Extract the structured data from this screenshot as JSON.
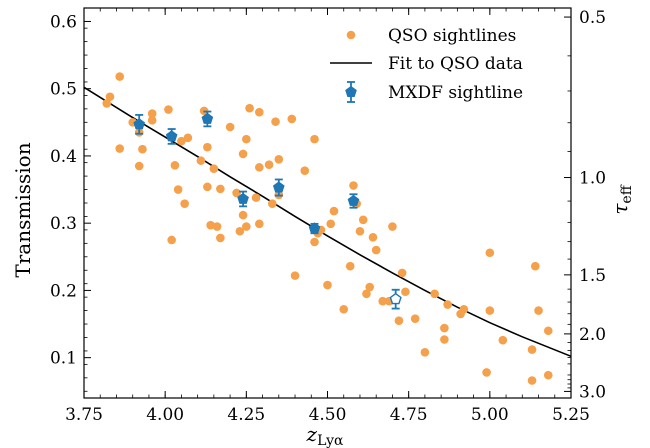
{
  "chart_data": {
    "type": "scatter",
    "xlabel": "z",
    "xlabel_sub": "Lyα",
    "ylabel": "Transmission",
    "y2label": "τ",
    "y2label_sub": "eff",
    "xlim": [
      3.75,
      5.25
    ],
    "ylim": [
      0.04,
      0.62
    ],
    "xticks": [
      3.75,
      4.0,
      4.25,
      4.5,
      4.75,
      5.0,
      5.25
    ],
    "xtick_labels": [
      "3.75",
      "4.00",
      "4.25",
      "4.50",
      "4.75",
      "5.00",
      "5.25"
    ],
    "yticks": [
      0.1,
      0.2,
      0.3,
      0.4,
      0.5,
      0.6
    ],
    "ytick_labels": [
      "0.1",
      "0.2",
      "0.3",
      "0.4",
      "0.5",
      "0.6"
    ],
    "y2ticks_tau": [
      0.5,
      1.0,
      1.5,
      2.0,
      3.0
    ],
    "y2tick_labels": [
      "0.5",
      "1.0",
      "1.5",
      "2.0",
      "3.0"
    ],
    "grid": false,
    "legend_position": "top-right",
    "colors": {
      "qso": "#f5a04a",
      "fit": "#000000",
      "mxdf": "#1f77b4"
    },
    "series": [
      {
        "name": "QSO sightlines",
        "kind": "scatter",
        "points": [
          [
            3.82,
            0.478
          ],
          [
            3.83,
            0.488
          ],
          [
            3.86,
            0.518
          ],
          [
            3.86,
            0.411
          ],
          [
            3.9,
            0.45
          ],
          [
            3.92,
            0.385
          ],
          [
            3.92,
            0.435
          ],
          [
            3.93,
            0.41
          ],
          [
            3.96,
            0.463
          ],
          [
            3.96,
            0.453
          ],
          [
            4.01,
            0.469
          ],
          [
            4.02,
            0.275
          ],
          [
            4.03,
            0.386
          ],
          [
            4.04,
            0.35
          ],
          [
            4.05,
            0.422
          ],
          [
            4.06,
            0.329
          ],
          [
            4.07,
            0.427
          ],
          [
            4.11,
            0.393
          ],
          [
            4.12,
            0.467
          ],
          [
            4.13,
            0.413
          ],
          [
            4.13,
            0.354
          ],
          [
            4.14,
            0.297
          ],
          [
            4.15,
            0.381
          ],
          [
            4.16,
            0.295
          ],
          [
            4.17,
            0.351
          ],
          [
            4.17,
            0.278
          ],
          [
            4.2,
            0.443
          ],
          [
            4.22,
            0.345
          ],
          [
            4.23,
            0.288
          ],
          [
            4.24,
            0.403
          ],
          [
            4.24,
            0.312
          ],
          [
            4.25,
            0.295
          ],
          [
            4.25,
            0.425
          ],
          [
            4.26,
            0.471
          ],
          [
            4.28,
            0.338
          ],
          [
            4.29,
            0.299
          ],
          [
            4.29,
            0.465
          ],
          [
            4.29,
            0.383
          ],
          [
            4.32,
            0.387
          ],
          [
            4.33,
            0.329
          ],
          [
            4.34,
            0.451
          ],
          [
            4.35,
            0.395
          ],
          [
            4.35,
            0.342
          ],
          [
            4.39,
            0.455
          ],
          [
            4.4,
            0.222
          ],
          [
            4.43,
            0.378
          ],
          [
            4.46,
            0.425
          ],
          [
            4.46,
            0.272
          ],
          [
            4.47,
            0.285
          ],
          [
            4.48,
            0.29
          ],
          [
            4.5,
            0.208
          ],
          [
            4.51,
            0.299
          ],
          [
            4.52,
            0.318
          ],
          [
            4.55,
            0.172
          ],
          [
            4.57,
            0.236
          ],
          [
            4.58,
            0.356
          ],
          [
            4.59,
            0.329
          ],
          [
            4.6,
            0.288
          ],
          [
            4.61,
            0.305
          ],
          [
            4.62,
            0.195
          ],
          [
            4.63,
            0.205
          ],
          [
            4.64,
            0.279
          ],
          [
            4.65,
            0.26
          ],
          [
            4.67,
            0.184
          ],
          [
            4.69,
            0.184
          ],
          [
            4.7,
            0.295
          ],
          [
            4.72,
            0.155
          ],
          [
            4.73,
            0.226
          ],
          [
            4.74,
            0.198
          ],
          [
            4.77,
            0.158
          ],
          [
            4.8,
            0.108
          ],
          [
            4.83,
            0.195
          ],
          [
            4.86,
            0.144
          ],
          [
            4.86,
            0.127
          ],
          [
            4.87,
            0.179
          ],
          [
            4.91,
            0.165
          ],
          [
            4.92,
            0.172
          ],
          [
            4.99,
            0.078
          ],
          [
            5.0,
            0.256
          ],
          [
            5.0,
            0.17
          ],
          [
            5.04,
            0.126
          ],
          [
            5.13,
            0.066
          ],
          [
            5.13,
            0.112
          ],
          [
            5.14,
            0.236
          ],
          [
            5.15,
            0.17
          ],
          [
            5.18,
            0.074
          ],
          [
            5.18,
            0.14
          ]
        ]
      },
      {
        "name": "Fit to QSO data",
        "kind": "line",
        "x": [
          3.75,
          3.9,
          4.0,
          4.1,
          4.2,
          4.3,
          4.4,
          4.5,
          4.6,
          4.7,
          4.8,
          4.9,
          5.0,
          5.1,
          5.25
        ],
        "y": [
          0.502,
          0.457,
          0.428,
          0.399,
          0.369,
          0.34,
          0.31,
          0.281,
          0.253,
          0.226,
          0.2,
          0.175,
          0.152,
          0.131,
          0.102
        ]
      },
      {
        "name": "MXDF sightline",
        "kind": "errorbar",
        "points": [
          {
            "x": 3.92,
            "y": 0.447,
            "err": 0.014,
            "open": false
          },
          {
            "x": 4.02,
            "y": 0.429,
            "err": 0.011,
            "open": false
          },
          {
            "x": 4.13,
            "y": 0.455,
            "err": 0.011,
            "open": false
          },
          {
            "x": 4.24,
            "y": 0.336,
            "err": 0.011,
            "open": false
          },
          {
            "x": 4.35,
            "y": 0.353,
            "err": 0.012,
            "open": false
          },
          {
            "x": 4.46,
            "y": 0.292,
            "err": 0.007,
            "open": false
          },
          {
            "x": 4.58,
            "y": 0.333,
            "err": 0.01,
            "open": false
          },
          {
            "x": 4.71,
            "y": 0.187,
            "err": 0.014,
            "open": true
          }
        ]
      }
    ]
  }
}
